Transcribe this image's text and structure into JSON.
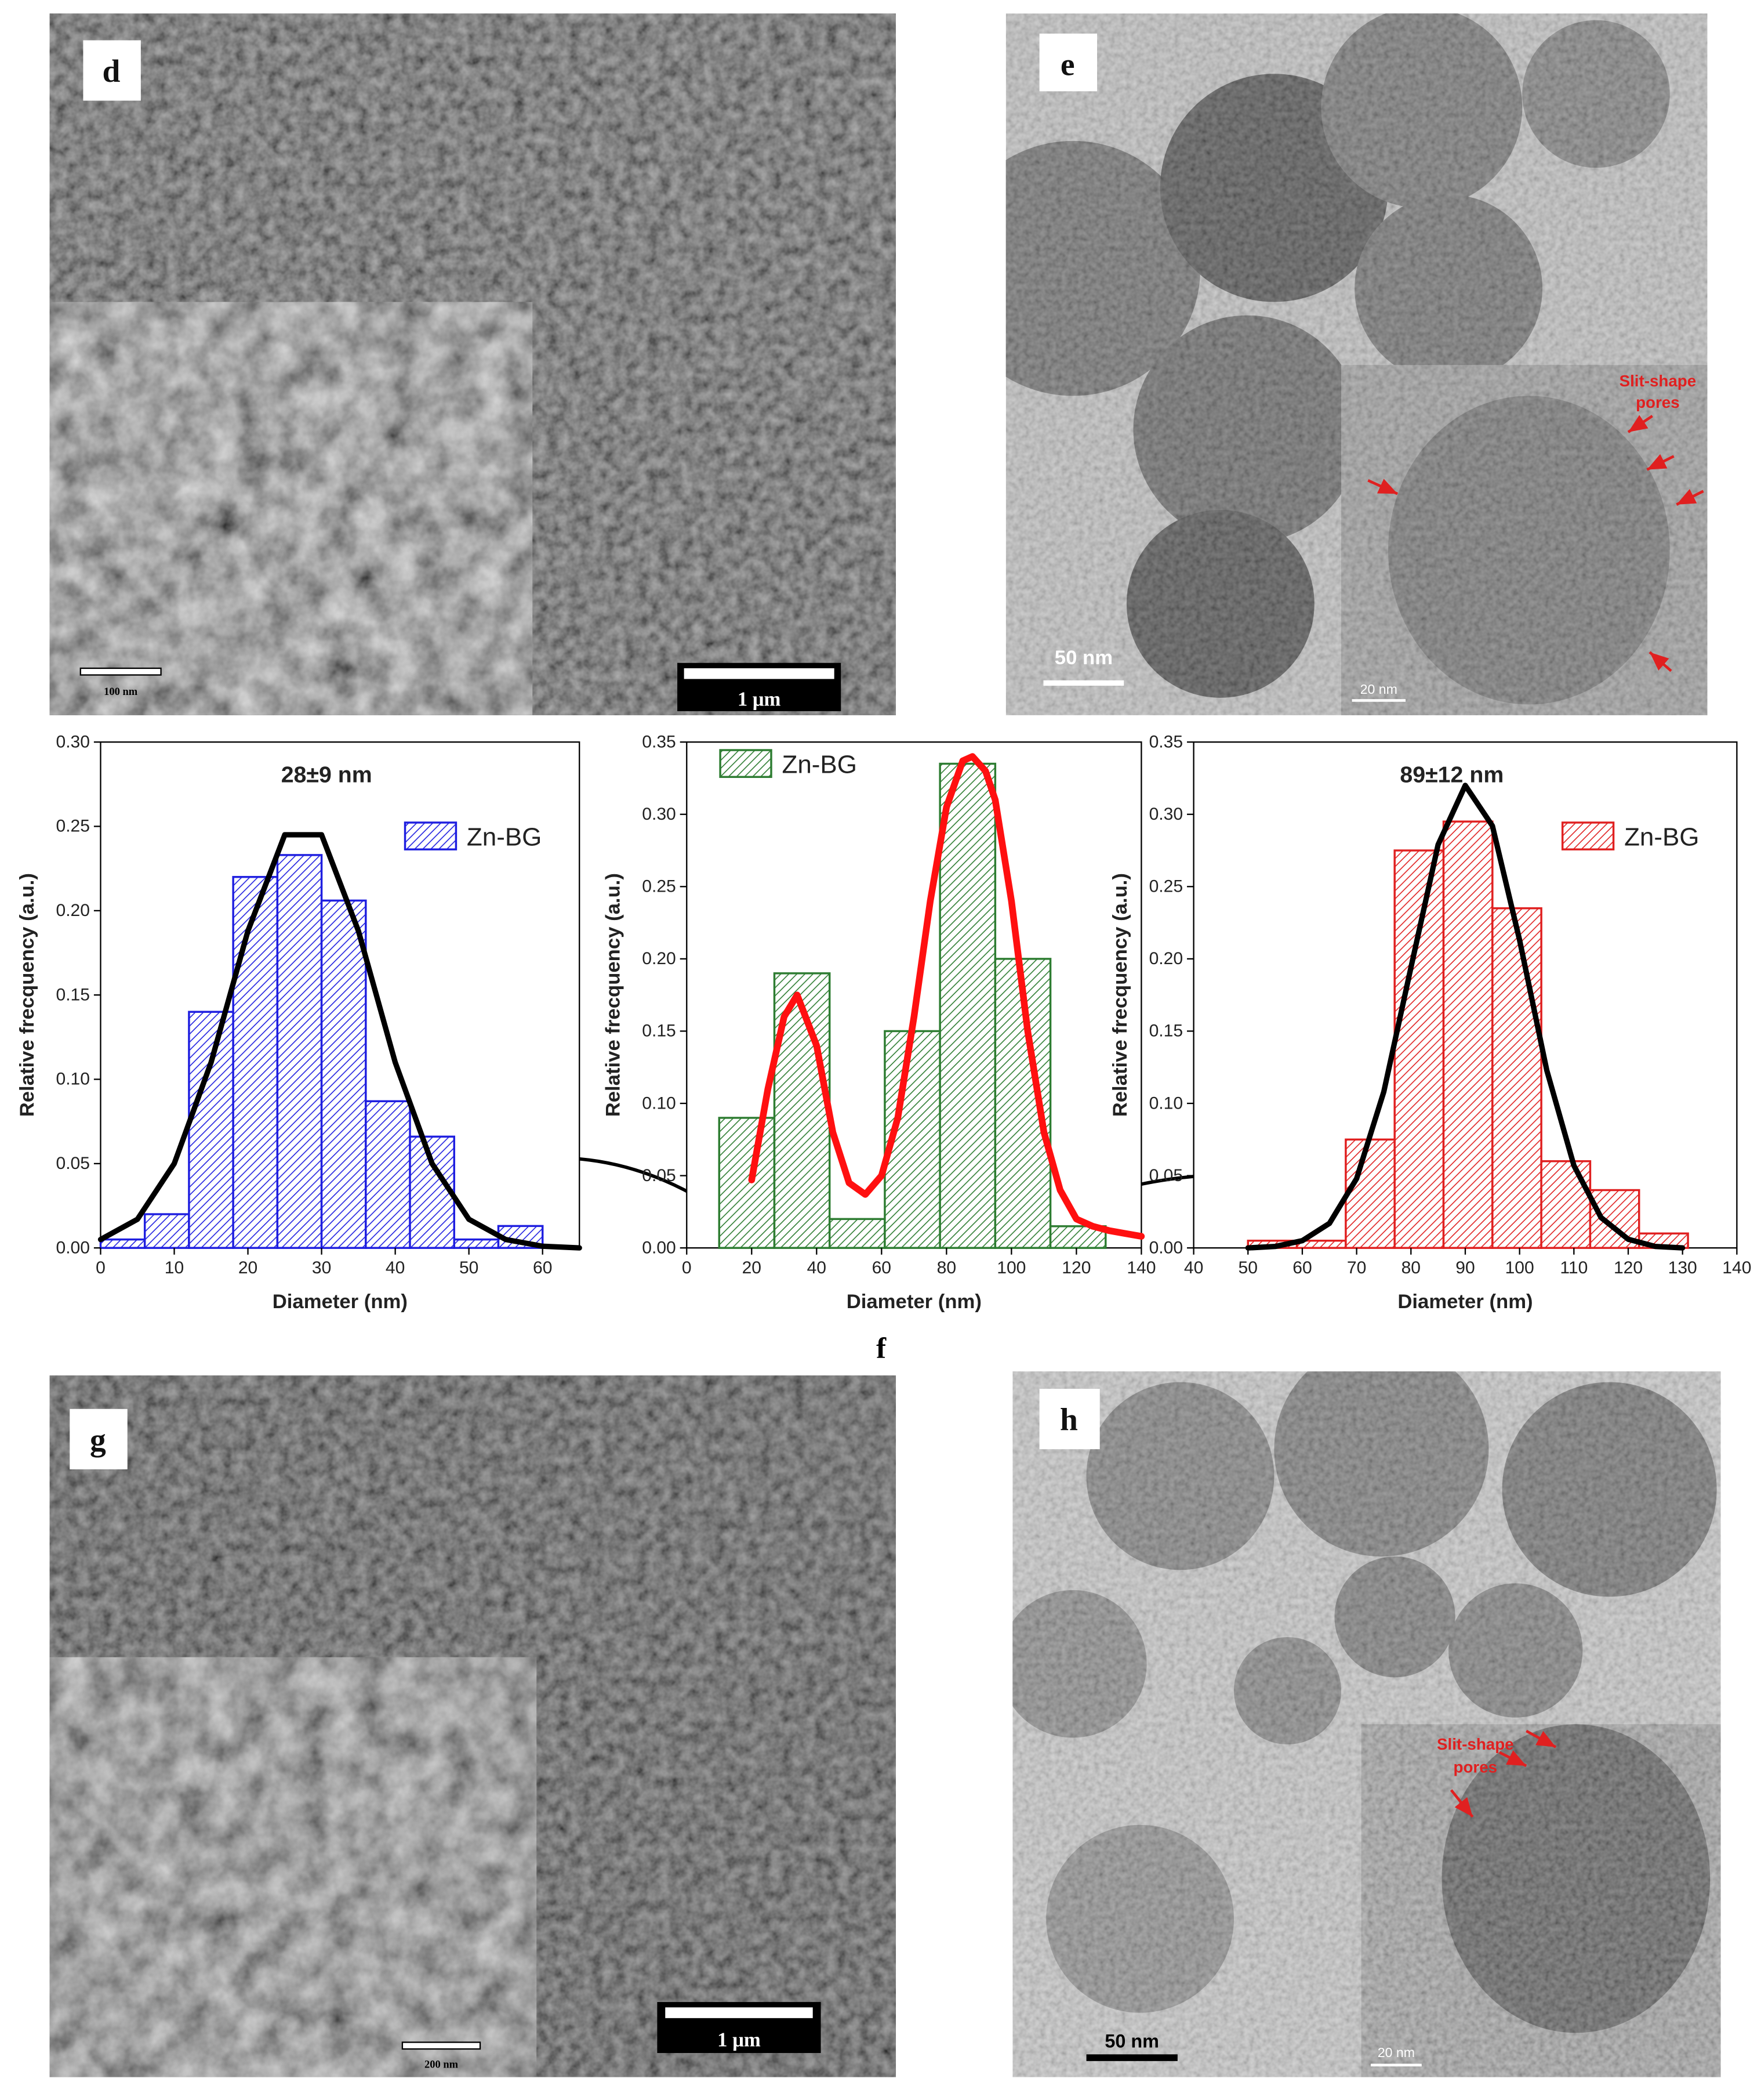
{
  "panels": [
    {
      "label": "d",
      "scale_bar": "1 μm",
      "inset_scale_bar": "100 nm"
    },
    {
      "label": "e",
      "scale_bar": "50 nm",
      "inset_scale_bar": "20 nm",
      "annotation": [
        "Slit-shape",
        "pores"
      ]
    },
    {
      "label": "g",
      "scale_bar": "1 μm",
      "inset_scale_bar": "200 nm"
    },
    {
      "label": "h",
      "scale_bar": "50 nm",
      "inset_scale_bar": "20 nm",
      "annotation": [
        "Slit-shape",
        "pores"
      ]
    }
  ],
  "figure_label": "f",
  "chart_data": [
    {
      "type": "histogram",
      "title": "28±9 nm",
      "x_label": "Diameter (nm)",
      "y_label": "Relative frecquency (a.u.)",
      "bins": [
        0,
        6,
        12,
        18,
        24,
        30,
        36,
        42,
        48,
        54,
        60
      ],
      "series": [
        {
          "name": "Zn-BG",
          "color": "#1f1fe0",
          "values": [
            0.005,
            0.02,
            0.14,
            0.22,
            0.233,
            0.206,
            0.087,
            0.066,
            0.005,
            0.013
          ]
        }
      ],
      "fit": {
        "color": "#000000",
        "x": [
          0,
          5,
          10,
          15,
          20,
          25,
          30,
          35,
          40,
          45,
          50,
          55,
          60,
          65
        ],
        "values": [
          0.005,
          0.017,
          0.05,
          0.11,
          0.188,
          0.245,
          0.245,
          0.188,
          0.11,
          0.05,
          0.017,
          0.005,
          0.001,
          0.0
        ]
      },
      "legend": "upper right",
      "xlim": [
        0,
        65
      ],
      "ylim": [
        0,
        0.3
      ],
      "xticks": [
        0,
        10,
        20,
        30,
        40,
        50,
        60
      ],
      "yticks": [
        {
          "value": 0,
          "label": "0.00"
        },
        {
          "value": 0.05,
          "label": "0.05"
        },
        {
          "value": 0.1,
          "label": "0.10"
        },
        {
          "value": 0.15,
          "label": "0.15"
        },
        {
          "value": 0.2,
          "label": "0.20"
        },
        {
          "value": 0.25,
          "label": "0.25"
        },
        {
          "value": 0.3,
          "label": "0.30"
        }
      ]
    },
    {
      "type": "histogram",
      "x_label": "Diameter (nm)",
      "y_label": "Relative frecquency (a.u.)",
      "bins": [
        10,
        27,
        44,
        61,
        78,
        95,
        112,
        129
      ],
      "series": [
        {
          "name": "Zn-BG",
          "color": "#2e7d32",
          "values": [
            0.09,
            0.19,
            0.02,
            0.15,
            0.335,
            0.2,
            0.015
          ]
        }
      ],
      "fit": {
        "color": "#ff1010",
        "x": [
          20,
          25,
          30,
          34,
          40,
          45,
          50,
          55,
          60,
          65,
          70,
          75,
          80,
          85,
          88,
          92,
          95,
          100,
          105,
          110,
          115,
          120,
          125,
          130,
          135,
          140
        ],
        "values": [
          0.047,
          0.11,
          0.16,
          0.175,
          0.14,
          0.08,
          0.045,
          0.037,
          0.05,
          0.09,
          0.16,
          0.24,
          0.305,
          0.337,
          0.34,
          0.33,
          0.31,
          0.24,
          0.15,
          0.08,
          0.04,
          0.02,
          0.015,
          0.012,
          0.01,
          0.008
        ]
      },
      "legend": "upper left",
      "xlim": [
        0,
        140
      ],
      "ylim": [
        0,
        0.35
      ],
      "xticks": [
        0,
        20,
        40,
        60,
        80,
        100,
        120,
        140
      ],
      "yticks": [
        {
          "value": 0,
          "label": "0.00"
        },
        {
          "value": 0.05,
          "label": "0.05"
        },
        {
          "value": 0.1,
          "label": "0.10"
        },
        {
          "value": 0.15,
          "label": "0.15"
        },
        {
          "value": 0.2,
          "label": "0.20"
        },
        {
          "value": 0.25,
          "label": "0.25"
        },
        {
          "value": 0.3,
          "label": "0.30"
        },
        {
          "value": 0.35,
          "label": "0.35"
        }
      ]
    },
    {
      "type": "histogram",
      "title": "89±12 nm",
      "x_label": "Diameter (nm)",
      "y_label": "Relative frecquency (a.u.)",
      "bins": [
        50,
        59,
        68,
        77,
        86,
        95,
        104,
        113,
        122,
        131
      ],
      "series": [
        {
          "name": "Zn-BG",
          "color": "#e02020",
          "values": [
            0.005,
            0.005,
            0.075,
            0.275,
            0.295,
            0.235,
            0.06,
            0.04,
            0.01
          ]
        }
      ],
      "fit": {
        "color": "#000000",
        "x": [
          50,
          55,
          60,
          65,
          70,
          75,
          80,
          85,
          90,
          95,
          100,
          105,
          110,
          115,
          120,
          125,
          130
        ],
        "values": [
          0.0,
          0.001,
          0.005,
          0.017,
          0.048,
          0.108,
          0.194,
          0.279,
          0.32,
          0.292,
          0.213,
          0.123,
          0.057,
          0.021,
          0.006,
          0.001,
          0.0
        ]
      },
      "legend": "upper right",
      "xlim": [
        40,
        140
      ],
      "ylim": [
        0,
        0.35
      ],
      "xticks": [
        40,
        50,
        60,
        70,
        80,
        90,
        100,
        110,
        120,
        130,
        140
      ],
      "yticks": [
        {
          "value": 0,
          "label": "0.00"
        },
        {
          "value": 0.05,
          "label": "0.05"
        },
        {
          "value": 0.1,
          "label": "0.10"
        },
        {
          "value": 0.15,
          "label": "0.15"
        },
        {
          "value": 0.2,
          "label": "0.20"
        },
        {
          "value": 0.25,
          "label": "0.25"
        },
        {
          "value": 0.3,
          "label": "0.30"
        },
        {
          "value": 0.35,
          "label": "0.35"
        }
      ]
    }
  ]
}
